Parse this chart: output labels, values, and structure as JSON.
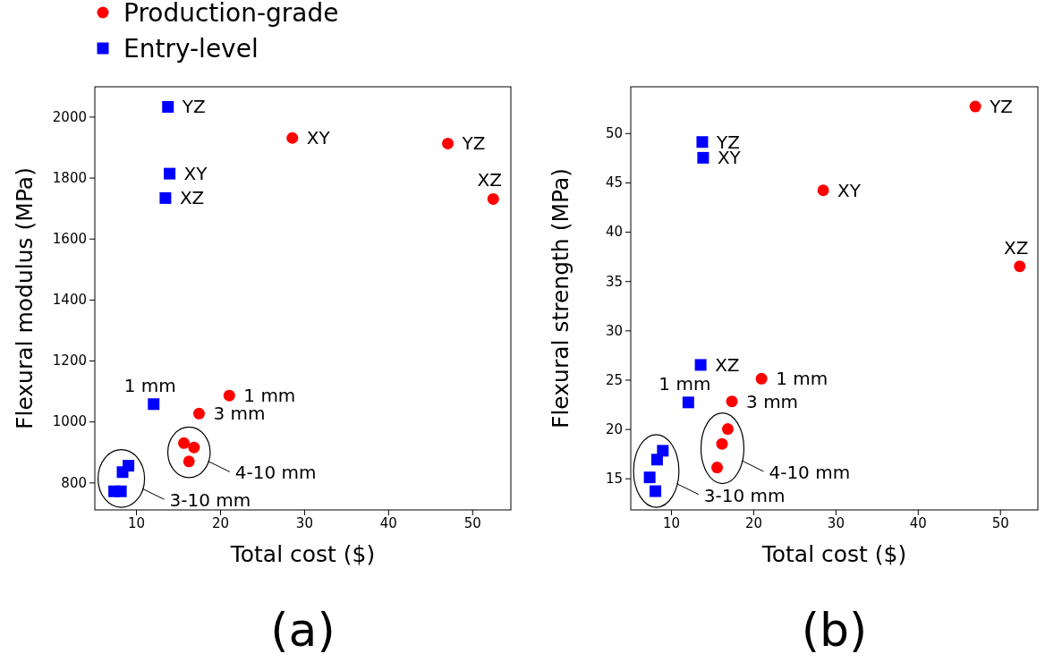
{
  "chart_data": [
    {
      "type": "scatter",
      "title": "(a)",
      "xlabel": "Total cost ($)",
      "ylabel": "Flexural modulus (MPa)",
      "xlim": [
        5.1,
        54.6
      ],
      "ylim": [
        710,
        2098
      ],
      "xticks": [
        10,
        20,
        30,
        40,
        50
      ],
      "yticks": [
        800,
        1000,
        1200,
        1400,
        1600,
        1800,
        2000
      ],
      "legend": "top left",
      "series": [
        {
          "name": "Production-grade",
          "color": "#ff0000",
          "marker": "circle",
          "x": [
            28.6,
            47.1,
            52.5,
            21.1,
            17.5,
            15.7,
            16.9,
            16.3
          ],
          "values": [
            1930,
            1912,
            1730,
            1085,
            1026,
            929,
            915,
            869
          ]
        },
        {
          "name": "Entry-level",
          "color": "#0000ff",
          "marker": "square",
          "x": [
            13.8,
            14.0,
            13.5,
            12.1,
            9.1,
            8.4,
            7.4,
            8.2
          ],
          "values": [
            2032,
            1813,
            1733,
            1057,
            855,
            834,
            771,
            771
          ]
        }
      ],
      "annotations": [
        {
          "text": "YZ",
          "x": 13.8,
          "y": 2032
        },
        {
          "text": "XY",
          "x": 14.0,
          "y": 1813
        },
        {
          "text": "XZ",
          "x": 13.5,
          "y": 1733
        },
        {
          "text": "XY",
          "x": 28.6,
          "y": 1930
        },
        {
          "text": "YZ",
          "x": 47.1,
          "y": 1912
        },
        {
          "text": "XZ",
          "x": 52.5,
          "y": 1730
        },
        {
          "text": "1 mm",
          "x": 12.1,
          "y": 1057
        },
        {
          "text": "1 mm",
          "x": 21.1,
          "y": 1085
        },
        {
          "text": "3 mm",
          "x": 17.5,
          "y": 1026
        },
        "4-10 mm",
        "3-10 mm"
      ]
    },
    {
      "type": "scatter",
      "title": "(b)",
      "xlabel": "Total cost ($)",
      "ylabel": "Flexural strength (MPa)",
      "xlim": [
        5.1,
        54.6
      ],
      "ylim": [
        11.8,
        54.7
      ],
      "xticks": [
        10,
        20,
        30,
        40,
        50
      ],
      "yticks": [
        15,
        20,
        25,
        30,
        35,
        40,
        45,
        50
      ],
      "series": [
        {
          "color": "#ff0000",
          "marker": "circle",
          "x": [
            47.0,
            28.5,
            52.4,
            21.0,
            17.4,
            16.9,
            16.2,
            15.6
          ],
          "values": [
            52.7,
            44.2,
            36.5,
            25.1,
            22.8,
            20.0,
            18.5,
            16.1
          ]
        },
        {
          "color": "#0000ff",
          "marker": "square",
          "x": [
            13.8,
            13.9,
            13.6,
            12.1,
            9.0,
            8.3,
            7.4,
            8.1
          ],
          "values": [
            49.1,
            47.5,
            26.5,
            22.7,
            17.8,
            16.9,
            15.1,
            13.7
          ]
        }
      ],
      "annotations": [
        {
          "text": "YZ",
          "x": 47.0,
          "y": 52.7
        },
        {
          "text": "YZ",
          "x": 13.8,
          "y": 49.1
        },
        {
          "text": "XY",
          "x": 13.9,
          "y": 47.5
        },
        {
          "text": "XY",
          "x": 28.5,
          "y": 44.2
        },
        {
          "text": "XZ",
          "x": 52.4,
          "y": 36.5
        },
        {
          "text": "XZ",
          "x": 13.6,
          "y": 26.5
        },
        {
          "text": "1 mm",
          "x": 21.0,
          "y": 25.1
        },
        {
          "text": "1 mm",
          "x": 12.1,
          "y": 22.7
        },
        {
          "text": "3 mm",
          "x": 17.4,
          "y": 22.8
        },
        "4-10 mm",
        "3-10 mm"
      ]
    }
  ]
}
